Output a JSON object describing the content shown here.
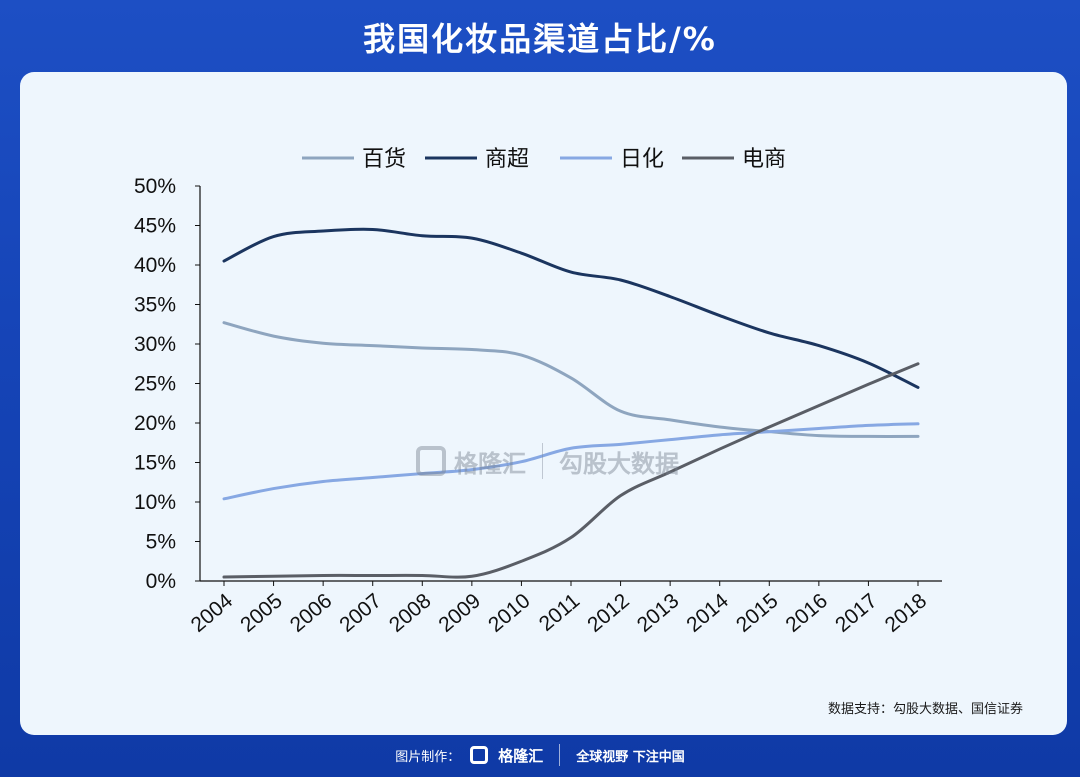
{
  "header": {
    "title": "我国化妆品渠道占比/%"
  },
  "source_note": "数据支持：勾股大数据、国信证券",
  "watermark": {
    "brand": "格隆汇",
    "sub": "勾股大数据"
  },
  "footer": {
    "made_by": "图片制作：",
    "brand": "格隆汇",
    "slogan": "全球视野 下注中国"
  },
  "colors": {
    "background": "#1645b8",
    "card": "#eef6fd",
    "百货": "#8ea5bf",
    "商超": "#1b355f",
    "日化": "#87a8e3",
    "电商": "#5a5e66"
  },
  "chart_data": {
    "type": "line",
    "title": "我国化妆品渠道占比/%",
    "xlabel": "",
    "ylabel": "",
    "categories": [
      "2004",
      "2005",
      "2006",
      "2007",
      "2008",
      "2009",
      "2010",
      "2011",
      "2012",
      "2013",
      "2014",
      "2015",
      "2016",
      "2017",
      "2018"
    ],
    "ylim": [
      0,
      50
    ],
    "yticks": [
      "0%",
      "5%",
      "10%",
      "15%",
      "20%",
      "25%",
      "30%",
      "35%",
      "40%",
      "45%",
      "50%"
    ],
    "grid": false,
    "legend_position": "top",
    "series": [
      {
        "name": "百货",
        "values": [
          32.7,
          31.0,
          30.1,
          29.8,
          29.5,
          29.3,
          28.6,
          25.7,
          21.5,
          20.4,
          19.5,
          18.9,
          18.4,
          18.3,
          18.3
        ]
      },
      {
        "name": "商超",
        "values": [
          40.5,
          43.6,
          44.3,
          44.5,
          43.7,
          43.4,
          41.5,
          39.1,
          38.1,
          36.0,
          33.6,
          31.4,
          29.8,
          27.6,
          24.5
        ]
      },
      {
        "name": "日化",
        "values": [
          10.4,
          11.7,
          12.6,
          13.1,
          13.6,
          14.1,
          15.1,
          16.8,
          17.3,
          17.9,
          18.5,
          18.9,
          19.3,
          19.7,
          19.9
        ]
      },
      {
        "name": "电商",
        "values": [
          0.5,
          0.6,
          0.7,
          0.7,
          0.7,
          0.6,
          2.5,
          5.5,
          10.8,
          13.8,
          16.7,
          19.5,
          22.2,
          24.9,
          27.5
        ]
      }
    ]
  }
}
